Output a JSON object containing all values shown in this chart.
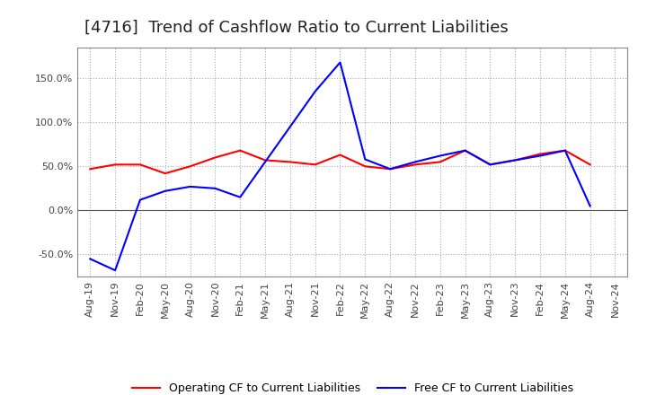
{
  "title": "[4716]  Trend of Cashflow Ratio to Current Liabilities",
  "x_labels": [
    "Aug-19",
    "Nov-19",
    "Feb-20",
    "May-20",
    "Aug-20",
    "Nov-20",
    "Feb-21",
    "May-21",
    "Aug-21",
    "Nov-21",
    "Feb-22",
    "May-22",
    "Aug-22",
    "Nov-22",
    "Feb-23",
    "May-23",
    "Aug-23",
    "Nov-23",
    "Feb-24",
    "May-24",
    "Aug-24",
    "Nov-24"
  ],
  "operating_cf": [
    0.47,
    0.52,
    0.52,
    0.42,
    0.5,
    0.6,
    0.68,
    0.57,
    0.55,
    0.52,
    0.63,
    0.5,
    0.47,
    0.52,
    0.55,
    0.68,
    0.52,
    0.57,
    0.64,
    0.68,
    0.52,
    null
  ],
  "free_cf": [
    -0.55,
    -0.68,
    0.12,
    0.22,
    0.27,
    0.25,
    0.15,
    0.55,
    0.95,
    1.35,
    1.68,
    0.58,
    0.47,
    0.55,
    0.62,
    0.68,
    0.52,
    0.57,
    0.62,
    0.68,
    0.05,
    null
  ],
  "ylim": [
    -0.75,
    1.85
  ],
  "yticks": [
    -0.5,
    0.0,
    0.5,
    1.0,
    1.5
  ],
  "operating_color": "#ff0000",
  "free_color": "#0000ff",
  "grid_color": "#aaaaaa",
  "background_color": "#ffffff",
  "title_fontsize": 13,
  "legend_fontsize": 9,
  "tick_fontsize": 8
}
